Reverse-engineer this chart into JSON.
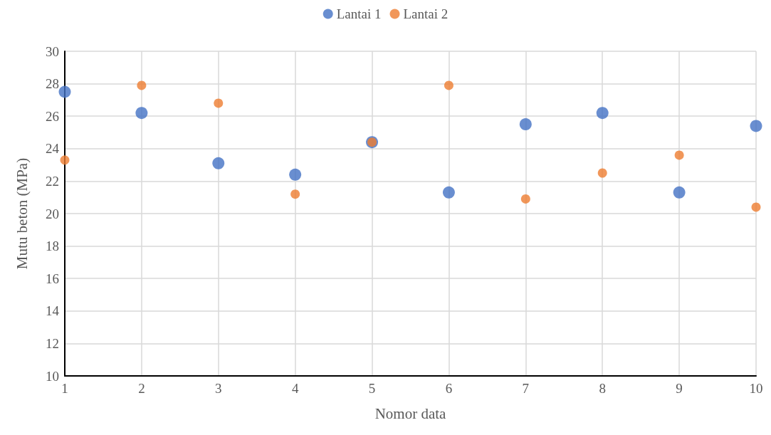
{
  "chart_data": {
    "type": "scatter",
    "xlabel": "Nomor data",
    "ylabel": "Mutu beton (MPa)",
    "x": [
      1,
      2,
      3,
      4,
      5,
      6,
      7,
      8,
      9,
      10
    ],
    "series": [
      {
        "name": "Lantai 1",
        "color": "#4472c4",
        "values": [
          27.5,
          26.2,
          23.1,
          22.4,
          24.4,
          21.3,
          25.5,
          26.2,
          21.3,
          25.4
        ]
      },
      {
        "name": "Lantai 2",
        "color": "#ed7d31",
        "values": [
          23.3,
          27.9,
          26.8,
          21.2,
          24.4,
          27.9,
          20.9,
          22.5,
          23.6,
          20.4
        ]
      }
    ],
    "xlim": [
      1,
      10
    ],
    "xticks": [
      1,
      2,
      3,
      4,
      5,
      6,
      7,
      8,
      9,
      10
    ],
    "ylim": [
      10,
      30
    ],
    "yticks": [
      10,
      12,
      14,
      16,
      18,
      20,
      22,
      24,
      26,
      28,
      30
    ],
    "grid": true,
    "legend": "top",
    "marker": "circle"
  }
}
